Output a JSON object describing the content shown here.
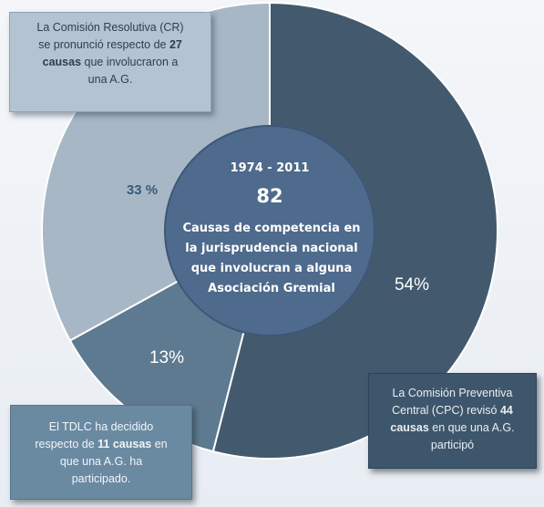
{
  "chart_data": {
    "type": "pie",
    "style": "donut",
    "period": "1974 - 2011",
    "total": "82",
    "center_lines": [
      "Causas de competencia en",
      "la jurisprudencia nacional",
      "que involucran a alguna",
      "Asociación Gremial"
    ],
    "slices": [
      {
        "label": "54%",
        "value": 54,
        "color": "#435a6e"
      },
      {
        "label": "13%",
        "value": 13,
        "color": "#5e7a90"
      },
      {
        "label": "33 %",
        "value": 33,
        "color": "#a7b7c5"
      }
    ],
    "center_color": "#4e6a8c"
  },
  "callouts": {
    "cr": {
      "line1": "La Comisión Resolutiva (CR)",
      "line2_pre": "se pronunció respecto de ",
      "line2_bold": "27",
      "line3_bold": "causas",
      "line3_post": " que involucraron a",
      "line4": "una A.G."
    },
    "cpc": {
      "line1": "La Comisión Preventiva",
      "line2_pre": "Central (CPC) revisó ",
      "line2_bold": "44",
      "line3_bold": "causas",
      "line3_post": " en que una A.G.",
      "line4": "participó"
    },
    "tdlc": {
      "line1": "El TDLC ha decidido",
      "line2_pre": "respecto de ",
      "line2_bold": "11 causas",
      "line2_post": " en",
      "line3": "que una A.G. ha",
      "line4": "participado."
    }
  }
}
